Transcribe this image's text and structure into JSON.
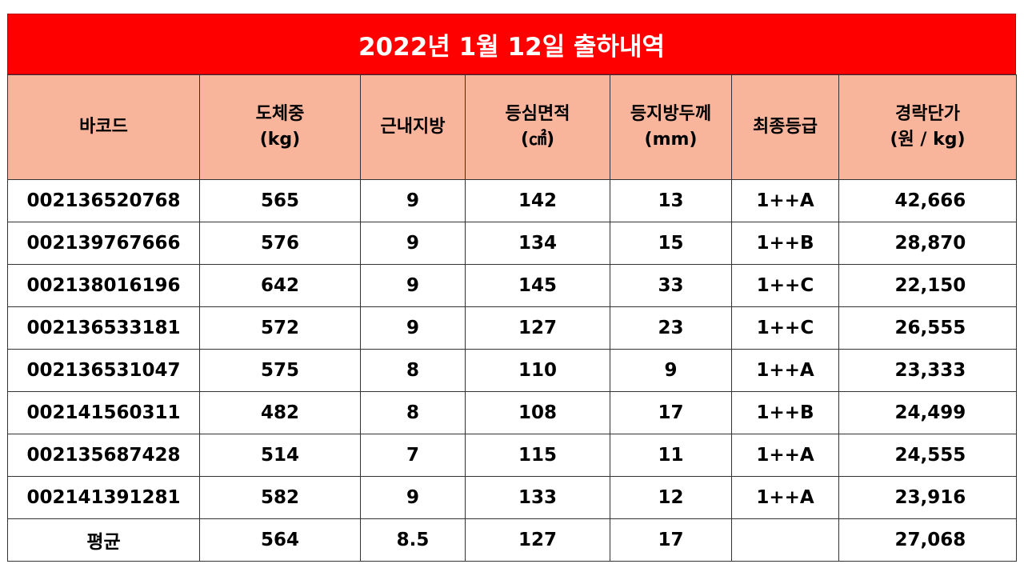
{
  "title": "2022년 1월 12일 출하내역",
  "columns": [
    {
      "line1": "바코드",
      "line2": ""
    },
    {
      "line1": "도체중",
      "line2": "(kg)"
    },
    {
      "line1": "근내지방",
      "line2": ""
    },
    {
      "line1": "등심면적",
      "line2": "(㎠)"
    },
    {
      "line1": "등지방두께",
      "line2": "(mm)"
    },
    {
      "line1": "최종등급",
      "line2": ""
    },
    {
      "line1": "경락단가",
      "line2": "(원 / kg)"
    }
  ],
  "rows": [
    [
      "002136520768",
      "565",
      "9",
      "142",
      "13",
      "1++A",
      "42,666"
    ],
    [
      "002139767666",
      "576",
      "9",
      "134",
      "15",
      "1++B",
      "28,870"
    ],
    [
      "002138016196",
      "642",
      "9",
      "145",
      "33",
      "1++C",
      "22,150"
    ],
    [
      "002136533181",
      "572",
      "9",
      "127",
      "23",
      "1++C",
      "26,555"
    ],
    [
      "002136531047",
      "575",
      "8",
      "110",
      "9",
      "1++A",
      "23,333"
    ],
    [
      "002141560311",
      "482",
      "8",
      "108",
      "17",
      "1++B",
      "24,499"
    ],
    [
      "002135687428",
      "514",
      "7",
      "115",
      "11",
      "1++A",
      "24,555"
    ],
    [
      "002141391281",
      "582",
      "9",
      "133",
      "12",
      "1++A",
      "23,916"
    ],
    [
      "평균",
      "564",
      "8.5",
      "127",
      "17",
      "",
      "27,068"
    ]
  ],
  "colors": {
    "title_bg": "#ff0000",
    "header_bg": "#f9b49c",
    "title_text": "#ffffff"
  }
}
